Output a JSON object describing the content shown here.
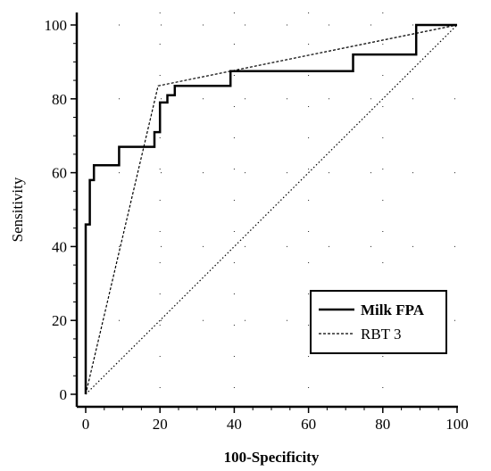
{
  "chart_data": {
    "type": "line",
    "title": "",
    "xlabel": "100-Specificity",
    "ylabel": "Sensitivity",
    "xlim": [
      0,
      100
    ],
    "ylim": [
      0,
      100
    ],
    "xticks": [
      0,
      20,
      40,
      60,
      80,
      100
    ],
    "yticks": [
      0,
      20,
      40,
      60,
      80,
      100
    ],
    "grid": "dashed",
    "legend_position": "bottom-right",
    "series": [
      {
        "name": "Milk FPA",
        "style": "solid",
        "color": "#000000",
        "x": [
          0,
          0,
          1.1,
          1.1,
          2.2,
          2.2,
          4.0,
          4.0,
          9.0,
          9.0,
          18.5,
          18.5,
          20.0,
          20.0,
          22.0,
          22.0,
          24.0,
          24.0,
          39.0,
          39.0,
          72.0,
          72.0,
          89.0,
          89.0,
          100
        ],
        "y": [
          0,
          46,
          46,
          58,
          58,
          62,
          62,
          62,
          62,
          67,
          67,
          71,
          71,
          79,
          79,
          81,
          81,
          83.5,
          83.5,
          87.5,
          87.5,
          92,
          92,
          100,
          100
        ]
      },
      {
        "name": "RBT 3",
        "style": "dashed",
        "color": "#000000",
        "x": [
          0,
          19.5,
          100
        ],
        "y": [
          0,
          83.5,
          100
        ]
      },
      {
        "name": "",
        "style": "dotted",
        "color": "#000000",
        "x": [
          0,
          100
        ],
        "y": [
          0,
          100
        ]
      }
    ]
  }
}
